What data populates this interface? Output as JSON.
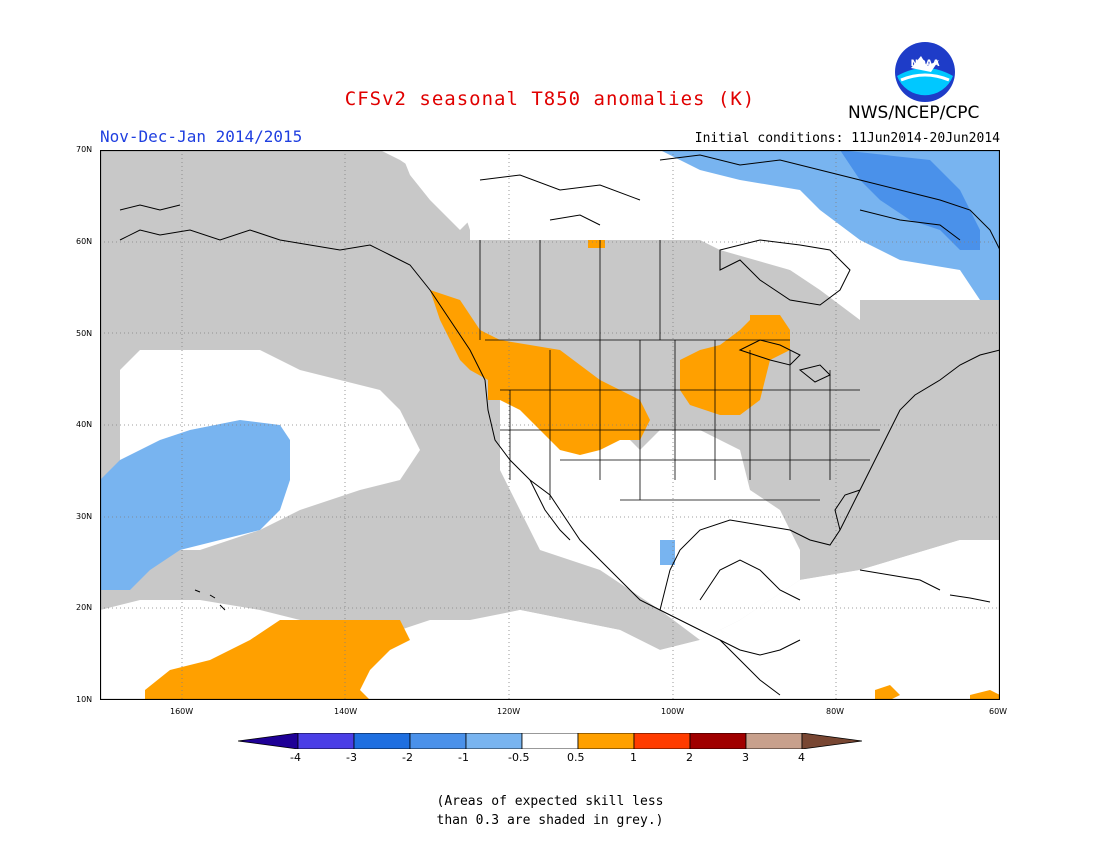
{
  "header": {
    "title": "CFSv2 seasonal T850 anomalies (K)",
    "season": "Nov-Dec-Jan 2014/2015",
    "initial_conditions": "Initial conditions: 11Jun2014-20Jun2014",
    "agency": "NWS/NCEP/CPC",
    "logo_text": "NOAA"
  },
  "map": {
    "region": "North America and eastern Pacific",
    "lon_range": [
      -170,
      -60
    ],
    "lat_range": [
      10,
      70
    ],
    "lat_ticks": [
      "70N",
      "60N",
      "50N",
      "40N",
      "30N",
      "20N",
      "10N"
    ],
    "lon_ticks": [
      "160W",
      "140W",
      "120W",
      "100W",
      "80W",
      "60W"
    ],
    "colors": {
      "grey": "#c8c8c8",
      "light_blue": "#78b4f0",
      "blue": "#4a91ea",
      "orange": "#ffa000",
      "land_outline": "#000000"
    }
  },
  "colorbar": {
    "labels": [
      "-4",
      "-3",
      "-2",
      "-1",
      "-0.5",
      "0.5",
      "1",
      "2",
      "3",
      "4"
    ],
    "colors": [
      "#1e0096",
      "#4a3ee6",
      "#1f6fe0",
      "#4a91ea",
      "#78b4f0",
      "#ffffff",
      "#ffa000",
      "#ff3c00",
      "#a00000",
      "#c8a08c",
      "#784632"
    ]
  },
  "note": {
    "line1": "(Areas of expected skill less",
    "line2": "than 0.3 are shaded in grey.)"
  }
}
